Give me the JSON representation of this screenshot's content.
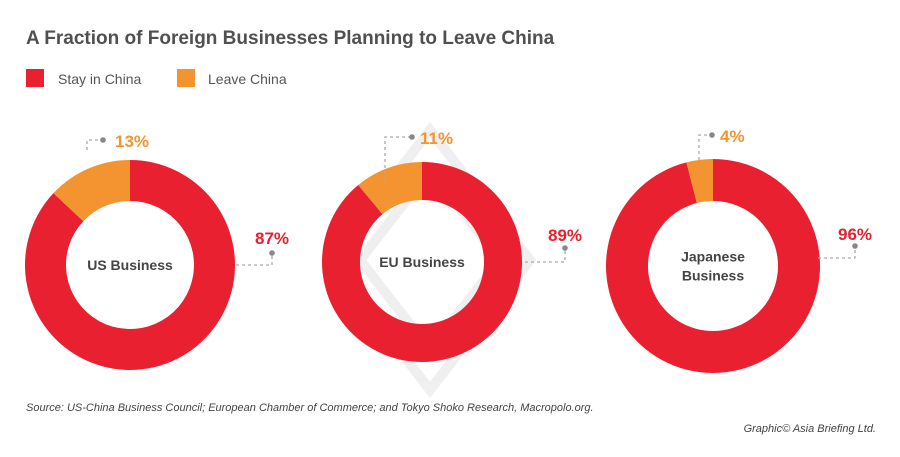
{
  "chart_data": {
    "type": "pie",
    "title": "A Fraction of Foreign Businesses Planning to Leave China",
    "legend": [
      {
        "name": "Stay in China",
        "color": "#e8202f"
      },
      {
        "name": "Leave China",
        "color": "#f39431"
      }
    ],
    "legend_position": "top-left",
    "charts": [
      {
        "label": [
          "US Business"
        ],
        "stay": 87,
        "leave": 13,
        "stay_label": "87%",
        "leave_label": "13%"
      },
      {
        "label": [
          "EU Business"
        ],
        "stay": 89,
        "leave": 11,
        "stay_label": "89%",
        "leave_label": "11%"
      },
      {
        "label": [
          "Japanese",
          "Business"
        ],
        "stay": 96,
        "leave": 4,
        "stay_label": "96%",
        "leave_label": "4%"
      }
    ],
    "source": "Source: US-China Business Council; European Chamber of Commerce; and Tokyo Shoko Research, Macropolo.org.",
    "credit": "Graphic© Asia Briefing Ltd."
  }
}
